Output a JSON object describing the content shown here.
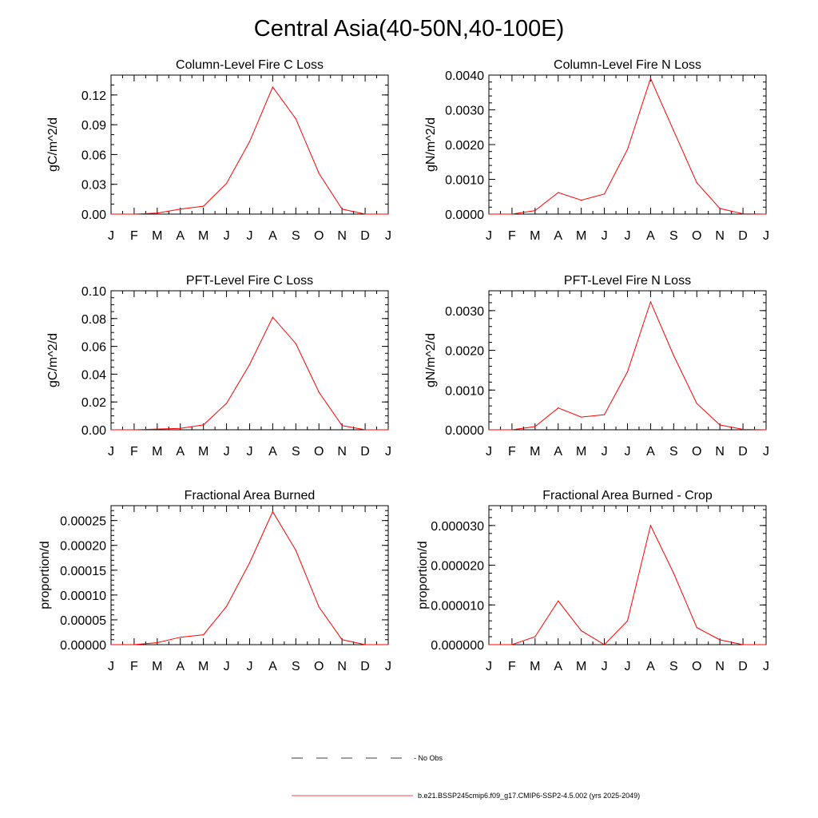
{
  "figure": {
    "title": "Central Asia(40-50N,40-100E)",
    "series_color": "#ff0000",
    "legend": {
      "obs_label": "No Obs",
      "model_label": "b.e21.BSSP245cmip6.f09_g17.CMIP6-SSP2-4.5.002 (yrs 2025-2049)"
    }
  },
  "chart_data": [
    {
      "type": "line",
      "title": "Column-Level Fire C Loss",
      "ylabel": "gC/m^2/d",
      "x": [
        "J",
        "F",
        "M",
        "A",
        "M",
        "J",
        "J",
        "A",
        "S",
        "O",
        "N",
        "D",
        "J"
      ],
      "ylim": [
        0,
        0.14
      ],
      "yticks": [
        0.0,
        0.03,
        0.06,
        0.09,
        0.12
      ],
      "ytick_labels": [
        "0.00",
        "0.03",
        "0.06",
        "0.09",
        "0.12"
      ],
      "yminor": 0.01,
      "series": [
        {
          "name": "model",
          "values": [
            0.0,
            0.0,
            0.001,
            0.005,
            0.008,
            0.031,
            0.073,
            0.128,
            0.096,
            0.041,
            0.005,
            0.0,
            0.0
          ]
        }
      ]
    },
    {
      "type": "line",
      "title": "Column-Level Fire N Loss",
      "ylabel": "gN/m^2/d",
      "x": [
        "J",
        "F",
        "M",
        "A",
        "M",
        "J",
        "J",
        "A",
        "S",
        "O",
        "N",
        "D",
        "J"
      ],
      "ylim": [
        0,
        0.004
      ],
      "yticks": [
        0.0,
        0.001,
        0.002,
        0.003,
        0.004
      ],
      "ytick_labels": [
        "0.0000",
        "0.0010",
        "0.0020",
        "0.0030",
        "0.0040"
      ],
      "yminor": 0.0002,
      "series": [
        {
          "name": "model",
          "values": [
            0.0,
            0.0,
            0.0001,
            0.00062,
            0.0004,
            0.00058,
            0.00186,
            0.0039,
            0.0024,
            0.0009,
            0.00016,
            1e-05,
            0.0
          ]
        }
      ]
    },
    {
      "type": "line",
      "title": "PFT-Level Fire C Loss",
      "ylabel": "gC/m^2/d",
      "x": [
        "J",
        "F",
        "M",
        "A",
        "M",
        "J",
        "J",
        "A",
        "S",
        "O",
        "N",
        "D",
        "J"
      ],
      "ylim": [
        0,
        0.1
      ],
      "yticks": [
        0.0,
        0.02,
        0.04,
        0.06,
        0.08,
        0.1
      ],
      "ytick_labels": [
        "0.00",
        "0.02",
        "0.04",
        "0.06",
        "0.08",
        "0.10"
      ],
      "yminor": 0.005,
      "series": [
        {
          "name": "model",
          "values": [
            0.0,
            0.0,
            0.0005,
            0.001,
            0.0035,
            0.019,
            0.047,
            0.081,
            0.062,
            0.027,
            0.003,
            0.0,
            0.0
          ]
        }
      ]
    },
    {
      "type": "line",
      "title": "PFT-Level Fire N Loss",
      "ylabel": "gN/m^2/d",
      "x": [
        "J",
        "F",
        "M",
        "A",
        "M",
        "J",
        "J",
        "A",
        "S",
        "O",
        "N",
        "D",
        "J"
      ],
      "ylim": [
        0,
        0.0035
      ],
      "yticks": [
        0.0,
        0.001,
        0.002,
        0.003
      ],
      "ytick_labels": [
        "0.0000",
        "0.0010",
        "0.0020",
        "0.0030"
      ],
      "yminor": 0.0002,
      "series": [
        {
          "name": "model",
          "values": [
            0.0,
            0.0,
            8e-05,
            0.00055,
            0.00032,
            0.00038,
            0.00146,
            0.00322,
            0.00187,
            0.00066,
            0.00012,
            1e-05,
            0.0
          ]
        }
      ]
    },
    {
      "type": "line",
      "title": "Fractional Area Burned",
      "ylabel": "proportion/d",
      "x": [
        "J",
        "F",
        "M",
        "A",
        "M",
        "J",
        "J",
        "A",
        "S",
        "O",
        "N",
        "D",
        "J"
      ],
      "ylim": [
        0,
        0.00028
      ],
      "yticks": [
        0.0,
        5e-05,
        0.0001,
        0.00015,
        0.0002,
        0.00025
      ],
      "ytick_labels": [
        "0.00000",
        "0.00005",
        "0.00010",
        "0.00015",
        "0.00020",
        "0.00025"
      ],
      "yminor": 1e-05,
      "series": [
        {
          "name": "model",
          "values": [
            0.0,
            0.0,
            4e-06,
            1.5e-05,
            2e-05,
            7.7e-05,
            0.000165,
            0.000268,
            0.00019,
            7.6e-05,
            1e-05,
            0.0,
            0.0
          ]
        }
      ]
    },
    {
      "type": "line",
      "title": "Fractional Area Burned - Crop",
      "ylabel": "proportion/d",
      "x": [
        "J",
        "F",
        "M",
        "A",
        "M",
        "J",
        "J",
        "A",
        "S",
        "O",
        "N",
        "D",
        "J"
      ],
      "ylim": [
        0,
        3.5e-05
      ],
      "yticks": [
        0.0,
        1e-05,
        2e-05,
        3e-05
      ],
      "ytick_labels": [
        "0.000000",
        "0.000010",
        "0.000020",
        "0.000030"
      ],
      "yminor": 2e-06,
      "series": [
        {
          "name": "model",
          "values": [
            0.0,
            0.0,
            2e-06,
            1.1e-05,
            3.5e-06,
            0.0,
            6e-06,
            3e-05,
            1.8e-05,
            4.3e-06,
            1.2e-06,
            0.0,
            0.0
          ]
        }
      ]
    }
  ]
}
